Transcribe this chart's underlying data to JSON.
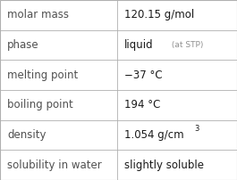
{
  "rows": [
    {
      "label": "molar mass",
      "value": "120.15 g/mol",
      "type": "normal"
    },
    {
      "label": "phase",
      "value": "liquid",
      "annotation": " (at STP)",
      "type": "phase"
    },
    {
      "label": "melting point",
      "value": "−37 °C",
      "type": "normal"
    },
    {
      "label": "boiling point",
      "value": "194 °C",
      "type": "normal"
    },
    {
      "label": "density",
      "value": "1.054 g/cm",
      "superscript": "3",
      "type": "super"
    },
    {
      "label": "solubility in water",
      "value": "slightly soluble",
      "type": "normal"
    }
  ],
  "bg_color": "#ffffff",
  "border_color": "#b0b0b0",
  "label_color": "#505050",
  "value_color": "#1a1a1a",
  "annotation_color": "#909090",
  "label_fontsize": 8.5,
  "value_fontsize": 8.5,
  "annotation_fontsize": 6.5,
  "col_split": 0.495,
  "fig_width": 2.65,
  "fig_height": 2.02,
  "dpi": 100
}
